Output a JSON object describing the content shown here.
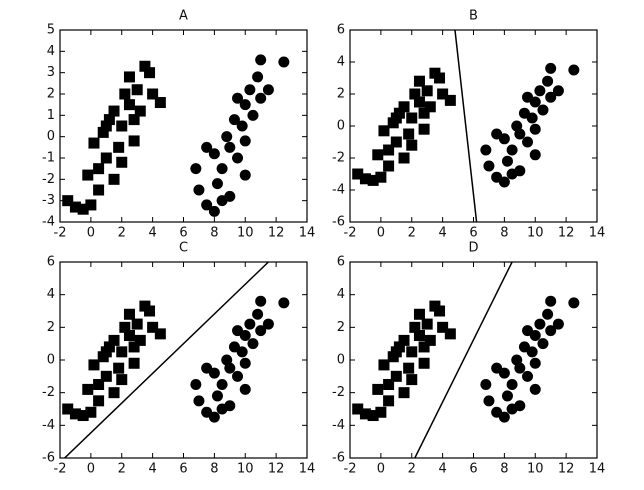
{
  "chart_data": [
    {
      "type": "scatter",
      "title": "A",
      "xlim": [
        -2,
        14
      ],
      "ylim": [
        -4,
        5
      ],
      "xticks": [
        -2,
        0,
        2,
        4,
        6,
        8,
        10,
        12,
        14
      ],
      "yticks": [
        -4,
        -3,
        -2,
        -1,
        0,
        1,
        2,
        3,
        4,
        5
      ],
      "series": [
        {
          "marker": "square",
          "color": "#000000",
          "x": [
            -1.5,
            -1,
            -0.5,
            0,
            -0.2,
            0.5,
            0.2,
            0.8,
            1,
            1.2,
            1.5,
            1.8,
            2,
            2.2,
            2.5,
            2.5,
            2.8,
            3,
            3.2,
            3.5,
            3.8,
            4,
            4.5,
            1.5,
            2,
            0.5,
            2.8,
            1
          ],
          "values": [
            -3,
            -3.3,
            -3.4,
            -3.2,
            -1.8,
            -1.5,
            -0.3,
            0.2,
            -1,
            0.8,
            1.2,
            -0.5,
            0.5,
            2,
            1.5,
            2.8,
            0.8,
            2.2,
            1.2,
            3.3,
            3,
            2,
            1.6,
            -2,
            -1.2,
            -2.5,
            -0.2,
            0.5
          ]
        },
        {
          "marker": "circle",
          "color": "#000000",
          "x": [
            6.8,
            7,
            7.5,
            8,
            8.2,
            8,
            8.5,
            8.8,
            9,
            9,
            9.3,
            9.5,
            9.8,
            10,
            10,
            10.3,
            10.5,
            10.8,
            11,
            11,
            11.5,
            12.5,
            9.5,
            8.5,
            10,
            7.5
          ],
          "values": [
            -1.5,
            -2.5,
            -3.2,
            -3.5,
            -2.2,
            -0.8,
            -1.5,
            0,
            -2.8,
            -0.5,
            0.8,
            -1,
            0.5,
            1.5,
            -0.2,
            2.2,
            1,
            2.8,
            3.6,
            1.8,
            2.2,
            3.5,
            1.8,
            -3,
            -1.8,
            -0.5
          ]
        }
      ]
    },
    {
      "type": "scatter",
      "title": "B",
      "xlim": [
        -2,
        14
      ],
      "ylim": [
        -6,
        6
      ],
      "xticks": [
        -2,
        0,
        2,
        4,
        6,
        8,
        10,
        12,
        14
      ],
      "yticks": [
        -6,
        -4,
        -2,
        0,
        2,
        4,
        6
      ],
      "series": [
        {
          "marker": "square",
          "color": "#000000",
          "x": [
            -1.5,
            -1,
            -0.5,
            0,
            -0.2,
            0.5,
            0.2,
            0.8,
            1,
            1.2,
            1.5,
            1.8,
            2,
            2.2,
            2.5,
            2.5,
            2.8,
            3,
            3.2,
            3.5,
            3.8,
            4,
            4.5,
            1.5,
            2,
            0.5,
            2.8,
            1
          ],
          "values": [
            -3,
            -3.3,
            -3.4,
            -3.2,
            -1.8,
            -1.5,
            -0.3,
            0.2,
            -1,
            0.8,
            1.2,
            -0.5,
            0.5,
            2,
            1.5,
            2.8,
            0.8,
            2.2,
            1.2,
            3.3,
            3,
            2,
            1.6,
            -2,
            -1.2,
            -2.5,
            -0.2,
            0.5
          ]
        },
        {
          "marker": "circle",
          "color": "#000000",
          "x": [
            6.8,
            7,
            7.5,
            8,
            8.2,
            8,
            8.5,
            8.8,
            9,
            9,
            9.3,
            9.5,
            9.8,
            10,
            10,
            10.3,
            10.5,
            10.8,
            11,
            11,
            11.5,
            12.5,
            9.5,
            8.5,
            10,
            7.5
          ],
          "values": [
            -1.5,
            -2.5,
            -3.2,
            -3.5,
            -2.2,
            -0.8,
            -1.5,
            0,
            -2.8,
            -0.5,
            0.8,
            -1,
            0.5,
            1.5,
            -0.2,
            2.2,
            1,
            2.8,
            3.6,
            1.8,
            2.2,
            3.5,
            1.8,
            -3,
            -1.8,
            -0.5
          ]
        },
        {
          "marker": "line",
          "color": "#000000",
          "x": [
            4.8,
            6.2
          ],
          "values": [
            6,
            -6
          ]
        }
      ]
    },
    {
      "type": "scatter",
      "title": "C",
      "xlim": [
        -2,
        14
      ],
      "ylim": [
        -6,
        6
      ],
      "xticks": [
        -2,
        0,
        2,
        4,
        6,
        8,
        10,
        12,
        14
      ],
      "yticks": [
        -6,
        -4,
        -2,
        0,
        2,
        4,
        6
      ],
      "series": [
        {
          "marker": "square",
          "color": "#000000",
          "x": [
            -1.5,
            -1,
            -0.5,
            0,
            -0.2,
            0.5,
            0.2,
            0.8,
            1,
            1.2,
            1.5,
            1.8,
            2,
            2.2,
            2.5,
            2.5,
            2.8,
            3,
            3.2,
            3.5,
            3.8,
            4,
            4.5,
            1.5,
            2,
            0.5,
            2.8,
            1
          ],
          "values": [
            -3,
            -3.3,
            -3.4,
            -3.2,
            -1.8,
            -1.5,
            -0.3,
            0.2,
            -1,
            0.8,
            1.2,
            -0.5,
            0.5,
            2,
            1.5,
            2.8,
            0.8,
            2.2,
            1.2,
            3.3,
            3,
            2,
            1.6,
            -2,
            -1.2,
            -2.5,
            -0.2,
            0.5
          ]
        },
        {
          "marker": "circle",
          "color": "#000000",
          "x": [
            6.8,
            7,
            7.5,
            8,
            8.2,
            8,
            8.5,
            8.8,
            9,
            9,
            9.3,
            9.5,
            9.8,
            10,
            10,
            10.3,
            10.5,
            10.8,
            11,
            11,
            11.5,
            12.5,
            9.5,
            8.5,
            10,
            7.5
          ],
          "values": [
            -1.5,
            -2.5,
            -3.2,
            -3.5,
            -2.2,
            -0.8,
            -1.5,
            0,
            -2.8,
            -0.5,
            0.8,
            -1,
            0.5,
            1.5,
            -0.2,
            2.2,
            1,
            2.8,
            3.6,
            1.8,
            2.2,
            3.5,
            1.8,
            -3,
            -1.8,
            -0.5
          ]
        },
        {
          "marker": "line",
          "color": "#000000",
          "x": [
            -1.7,
            11.5
          ],
          "values": [
            -6,
            6
          ]
        }
      ]
    },
    {
      "type": "scatter",
      "title": "D",
      "xlim": [
        -2,
        14
      ],
      "ylim": [
        -6,
        6
      ],
      "xticks": [
        -2,
        0,
        2,
        4,
        6,
        8,
        10,
        12,
        14
      ],
      "yticks": [
        -6,
        -4,
        -2,
        0,
        2,
        4,
        6
      ],
      "series": [
        {
          "marker": "square",
          "color": "#000000",
          "x": [
            -1.5,
            -1,
            -0.5,
            0,
            -0.2,
            0.5,
            0.2,
            0.8,
            1,
            1.2,
            1.5,
            1.8,
            2,
            2.2,
            2.5,
            2.5,
            2.8,
            3,
            3.2,
            3.5,
            3.8,
            4,
            4.5,
            1.5,
            2,
            0.5,
            2.8,
            1
          ],
          "values": [
            -3,
            -3.3,
            -3.4,
            -3.2,
            -1.8,
            -1.5,
            -0.3,
            0.2,
            -1,
            0.8,
            1.2,
            -0.5,
            0.5,
            2,
            1.5,
            2.8,
            0.8,
            2.2,
            1.2,
            3.3,
            3,
            2,
            1.6,
            -2,
            -1.2,
            -2.5,
            -0.2,
            0.5
          ]
        },
        {
          "marker": "circle",
          "color": "#000000",
          "x": [
            6.8,
            7,
            7.5,
            8,
            8.2,
            8,
            8.5,
            8.8,
            9,
            9,
            9.3,
            9.5,
            9.8,
            10,
            10,
            10.3,
            10.5,
            10.8,
            11,
            11,
            11.5,
            12.5,
            9.5,
            8.5,
            10,
            7.5
          ],
          "values": [
            -1.5,
            -2.5,
            -3.2,
            -3.5,
            -2.2,
            -0.8,
            -1.5,
            0,
            -2.8,
            -0.5,
            0.8,
            -1,
            0.5,
            1.5,
            -0.2,
            2.2,
            1,
            2.8,
            3.6,
            1.8,
            2.2,
            3.5,
            1.8,
            -3,
            -1.8,
            -0.5
          ]
        },
        {
          "marker": "line",
          "color": "#000000",
          "x": [
            2.2,
            8.5
          ],
          "values": [
            -6,
            6
          ]
        }
      ]
    }
  ]
}
